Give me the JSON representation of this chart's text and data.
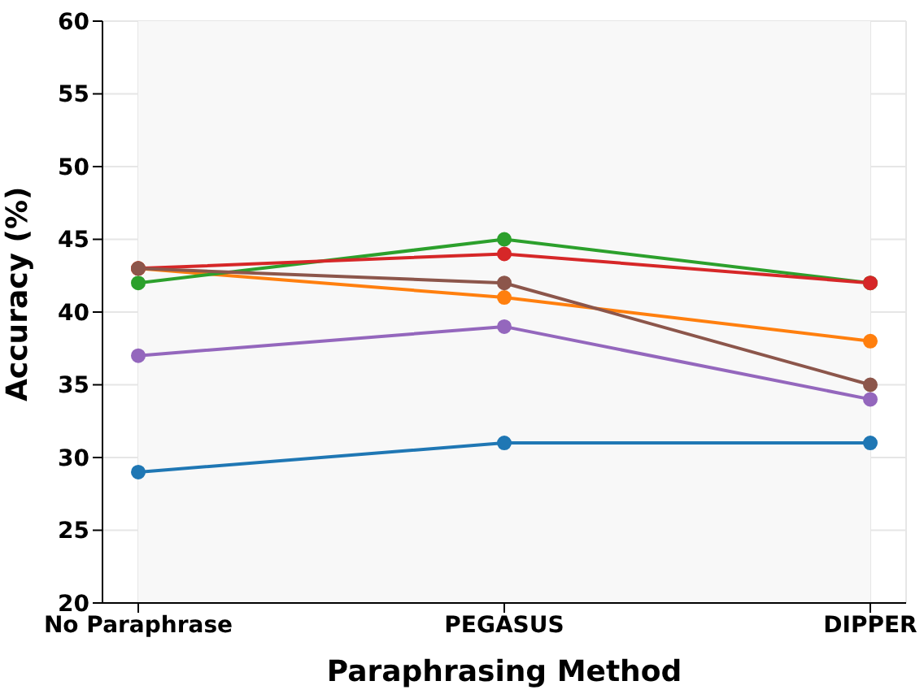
{
  "chart_data": {
    "type": "line",
    "xlabel": "Paraphrasing Method",
    "ylabel": "Accuracy (%)",
    "categories": [
      "No Paraphrase",
      "PEGASUS",
      "DIPPER"
    ],
    "series": [
      {
        "color": "#1f77b4",
        "values": [
          29,
          31,
          31
        ]
      },
      {
        "color": "#ff7f0e",
        "values": [
          43,
          41,
          38
        ]
      },
      {
        "color": "#2ca02c",
        "values": [
          42,
          45,
          42
        ]
      },
      {
        "color": "#d62728",
        "values": [
          43,
          44,
          42
        ]
      },
      {
        "color": "#9467bd",
        "values": [
          37,
          39,
          34
        ]
      },
      {
        "color": "#8c564b",
        "values": [
          43,
          42,
          35
        ]
      }
    ],
    "ylim": [
      20,
      60
    ],
    "yticks": [
      20,
      25,
      30,
      35,
      40,
      45,
      50,
      55,
      60
    ],
    "grid": true,
    "marker": "circle",
    "line_style": "solid"
  }
}
